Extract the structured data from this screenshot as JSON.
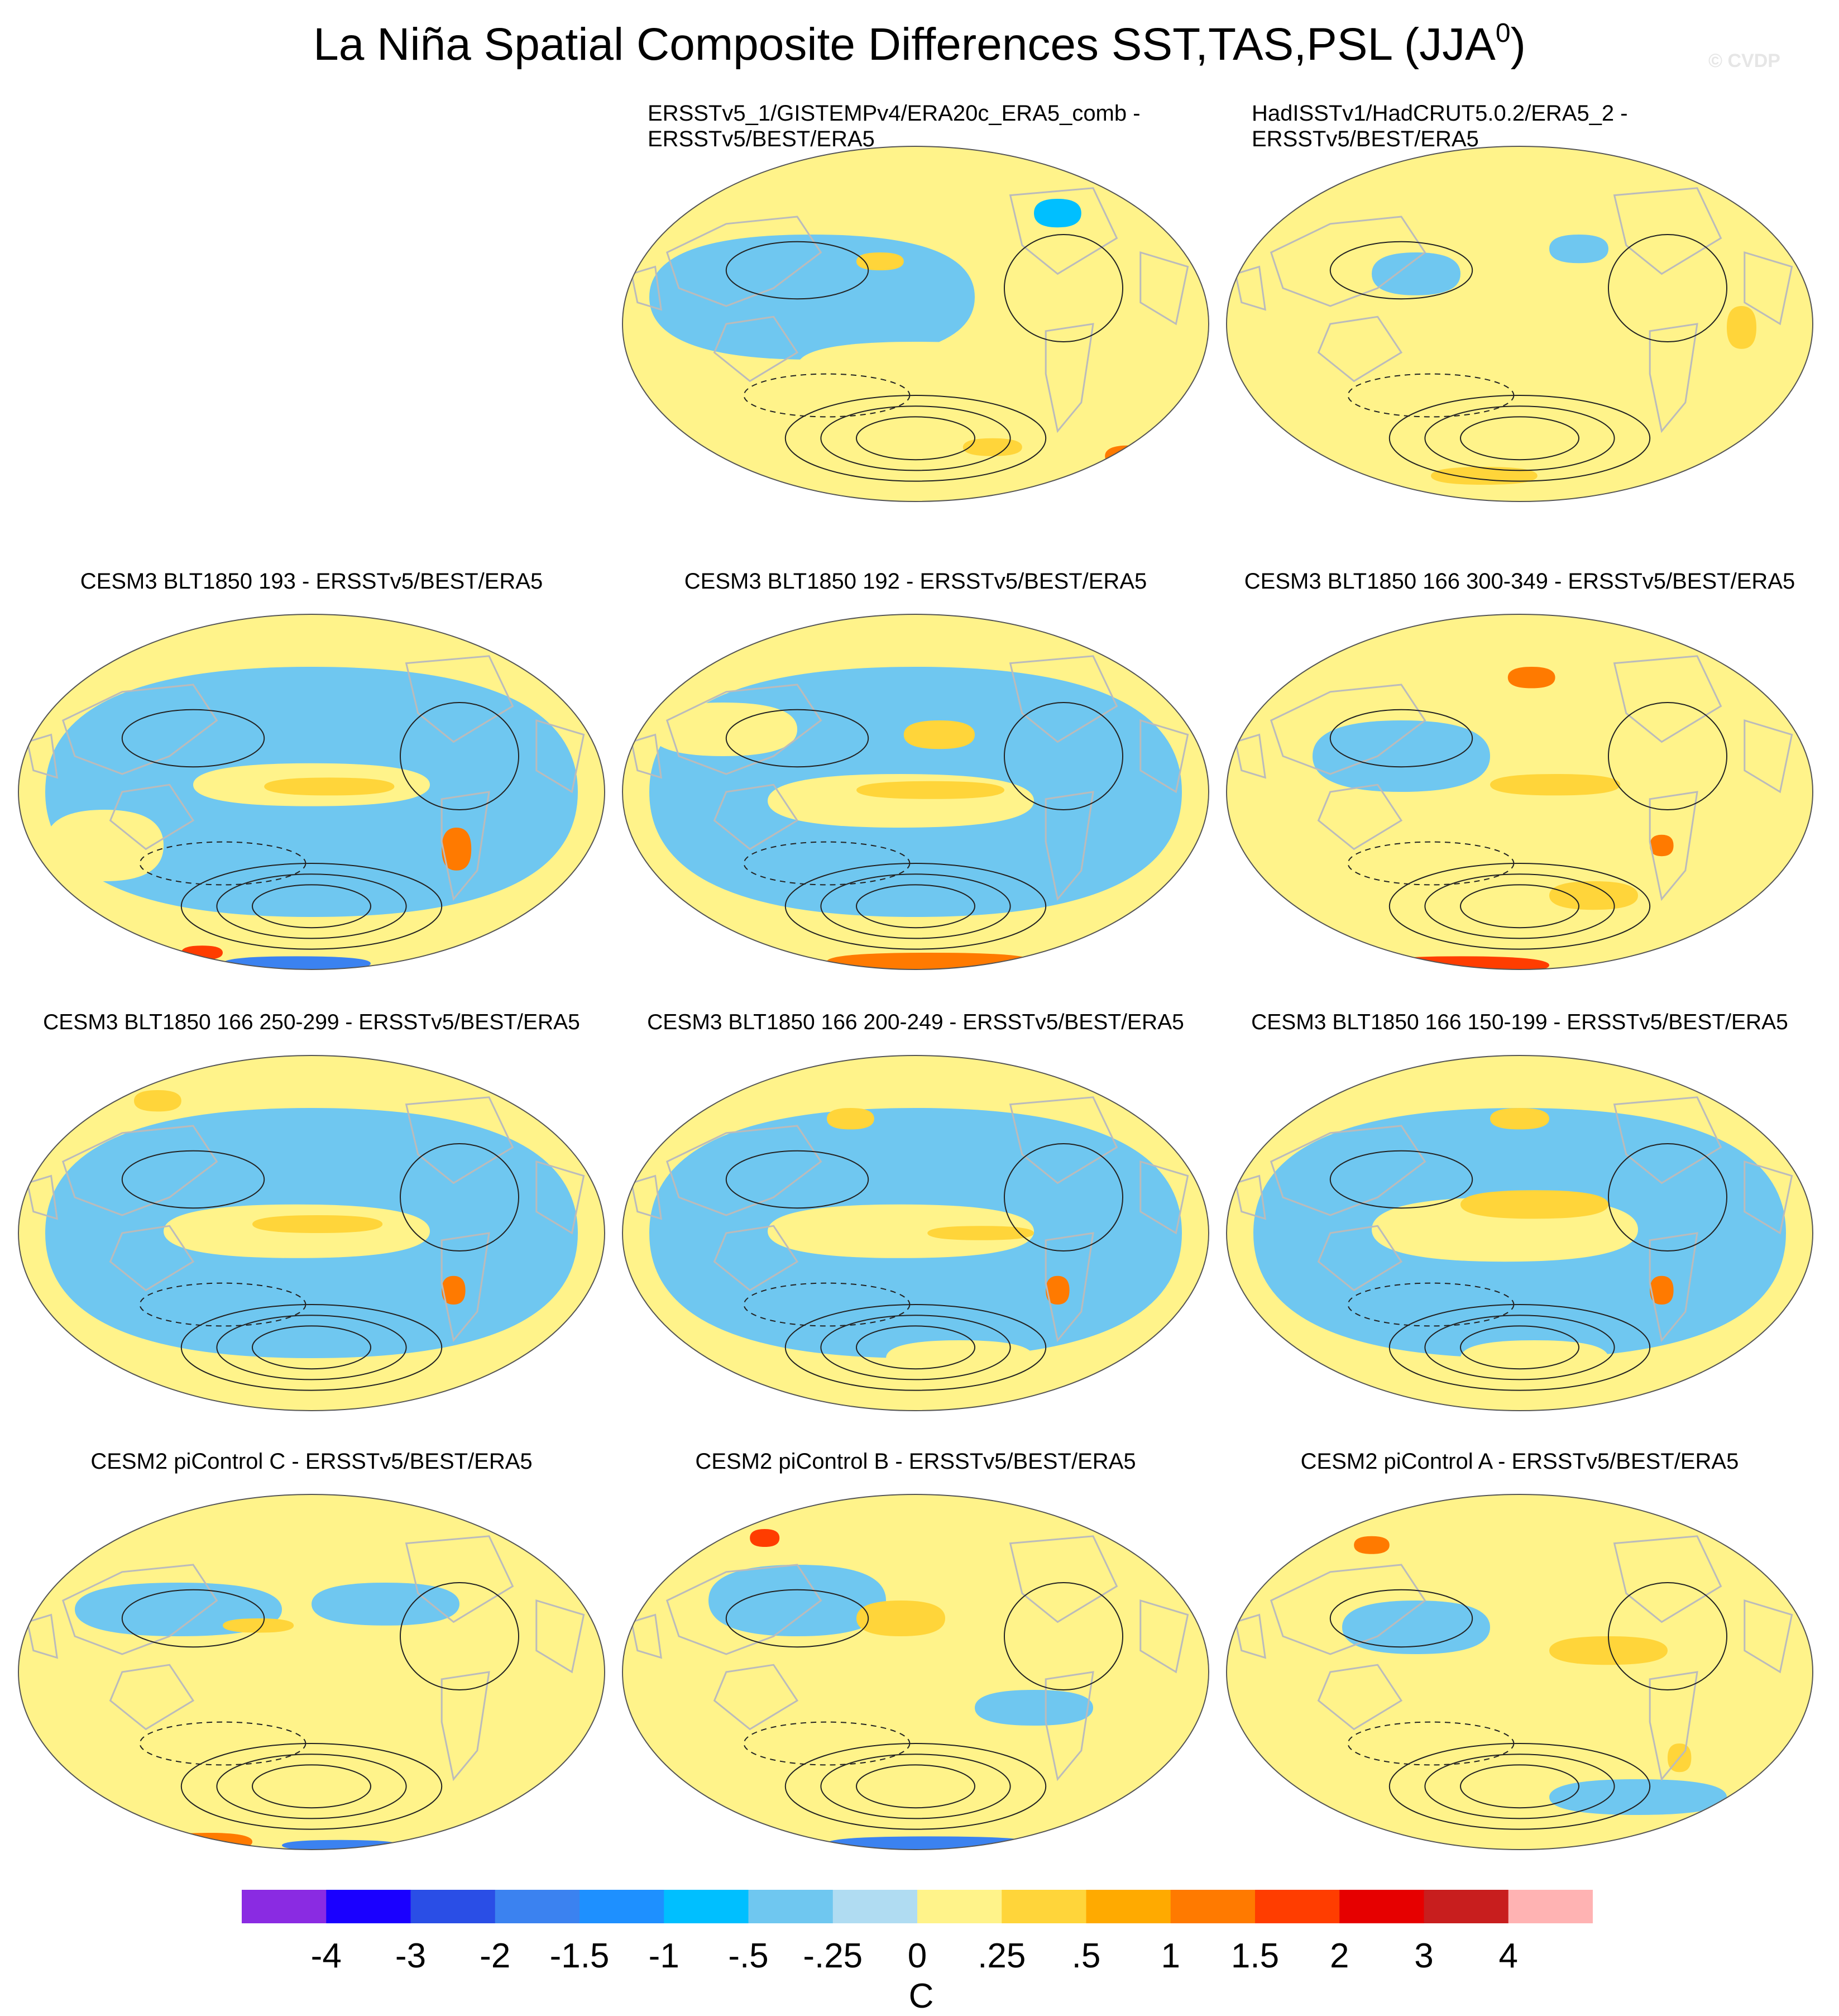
{
  "figure": {
    "title_main": "La Niña Spatial Composite Differences SST,TAS,PSL (JJA",
    "title_sup": "0",
    "title_close": ")",
    "watermark": "© CVDP"
  },
  "panels": [
    {
      "label_line1": "ERSSTv5_1/GISTEMPv4/ERA20c_ERA5_comb -",
      "label_line2": "ERSSTv5/BEST/ERA5"
    },
    {
      "label_line1": "HadISSTv1/HadCRUT5.0.2/ERA5_2 -",
      "label_line2": "ERSSTv5/BEST/ERA5"
    },
    {
      "label": "CESM3 BLT1850 193 - ERSSTv5/BEST/ERA5"
    },
    {
      "label": "CESM3 BLT1850 192 - ERSSTv5/BEST/ERA5"
    },
    {
      "label": "CESM3 BLT1850 166 300-349 - ERSSTv5/BEST/ERA5"
    },
    {
      "label": "CESM3 BLT1850 166 250-299 - ERSSTv5/BEST/ERA5"
    },
    {
      "label": "CESM3 BLT1850 166 200-249 - ERSSTv5/BEST/ERA5"
    },
    {
      "label": "CESM3 BLT1850 166 150-199 - ERSSTv5/BEST/ERA5"
    },
    {
      "label": "CESM2 piControl C - ERSSTv5/BEST/ERA5"
    },
    {
      "label": "CESM2 piControl B - ERSSTv5/BEST/ERA5"
    },
    {
      "label": "CESM2 piControl A - ERSSTv5/BEST/ERA5"
    }
  ],
  "colorbar": {
    "units": "C",
    "tick_labels": [
      "-4",
      "-3",
      "-2",
      "-1.5",
      "-1",
      "-.5",
      "-.25",
      "0",
      ".25",
      ".5",
      "1",
      "1.5",
      "2",
      "3",
      "4"
    ],
    "colors": [
      "#8a2be2",
      "#1a00ff",
      "#2a4ee6",
      "#3b82f0",
      "#1e90ff",
      "#00bfff",
      "#6fc7f0",
      "#b0dcf2",
      "#fff38a",
      "#ffd53a",
      "#ffaa00",
      "#ff7a00",
      "#ff3d00",
      "#e60000",
      "#c81e1e",
      "#ffb3b3"
    ]
  },
  "colors": {
    "land": "#ffffff",
    "coast": "#bbbbbb",
    "contour": "#222222"
  }
}
